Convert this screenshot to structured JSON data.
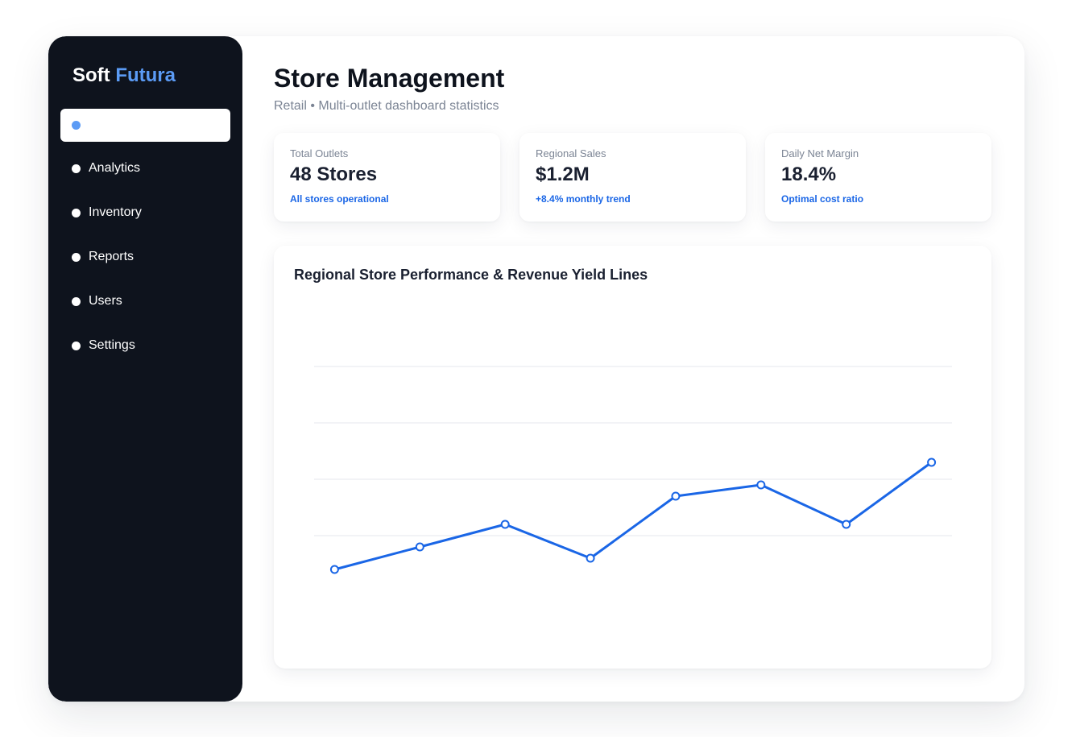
{
  "brand": {
    "name": "Soft",
    "accent": "Futura"
  },
  "nav": {
    "active_label": "",
    "items": [
      "Analytics",
      "Inventory",
      "Reports",
      "Users",
      "Settings"
    ]
  },
  "header": {
    "title": "Store Management",
    "subtitle": "Retail • Multi-outlet dashboard statistics"
  },
  "cards": [
    {
      "label": "Total Outlets",
      "value": "48 Stores",
      "note": "All stores operational"
    },
    {
      "label": "Regional Sales",
      "value": "$1.2M",
      "note": "+8.4% monthly trend"
    },
    {
      "label": "Daily Net Margin",
      "value": "18.4%",
      "note": "Optimal cost ratio"
    }
  ],
  "colors": {
    "sidebar": "#0e131d",
    "accent": "#5b9bf5",
    "line": "#1a66e6",
    "grid": "#e4e7ec"
  },
  "chart_data": {
    "type": "line",
    "title": "Regional Store Performance & Revenue Yield Lines",
    "x": [
      1,
      2,
      3,
      4,
      5,
      6,
      7,
      8
    ],
    "series": [
      {
        "values": [
          1.4,
          1.8,
          2.2,
          1.6,
          2.7,
          2.9,
          2.2,
          3.3
        ]
      }
    ],
    "ylim": [
      0,
      6
    ],
    "xlim": [
      0.76,
      8.24
    ],
    "grid": true,
    "xlabel": "",
    "ylabel": ""
  }
}
